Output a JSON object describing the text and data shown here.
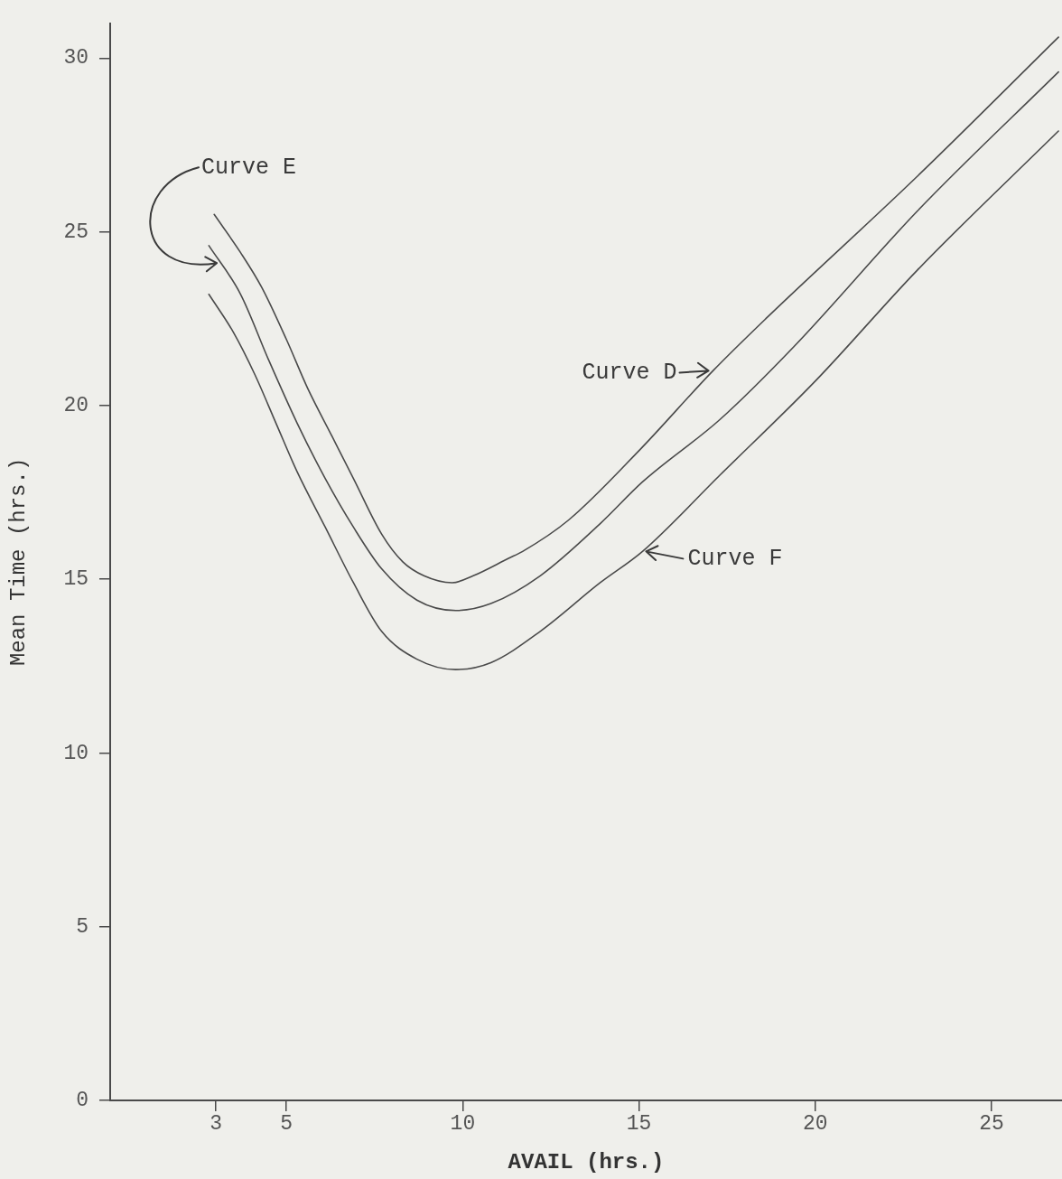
{
  "chart_data": {
    "type": "line",
    "xlabel": "AVAIL (hrs.)",
    "ylabel": "Mean Time (hrs.)",
    "xlim": [
      0,
      27
    ],
    "ylim": [
      0,
      31
    ],
    "xticks": [
      3,
      5,
      10,
      15,
      20,
      25
    ],
    "yticks": [
      0,
      5,
      10,
      15,
      20,
      25,
      30
    ],
    "grid": false,
    "legend": false,
    "marker": "none",
    "line_style": "solid",
    "annotations": [
      {
        "text": "Curve D",
        "x": 17.1,
        "y": 21.0
      },
      {
        "text": "Curve E",
        "x": 3.1,
        "y": 24.1
      },
      {
        "text": "Curve F",
        "x": 15.1,
        "y": 15.8
      }
    ],
    "series": [
      {
        "color": "#4a4a4a",
        "x": [
          2.95,
          3.7,
          4.3,
          5.0,
          5.6,
          6.3,
          6.9,
          7.7,
          8.3,
          8.9,
          9.7,
          10.3,
          11.3,
          11.7,
          13.0,
          15.0,
          17.1,
          18.6,
          22.9,
          26.9
        ],
        "values": [
          25.5,
          24.4,
          23.4,
          21.9,
          20.5,
          19.1,
          17.9,
          16.3,
          15.5,
          15.1,
          14.9,
          15.1,
          15.6,
          15.8,
          16.7,
          18.7,
          21.0,
          22.5,
          26.6,
          30.6
        ]
      },
      {
        "color": "#4a4a4a",
        "x": [
          2.8,
          3.7,
          4.5,
          5.3,
          6.1,
          6.9,
          7.7,
          8.7,
          9.8,
          10.8,
          12.2,
          13.9,
          15.1,
          17.3,
          19.4,
          22.9,
          26.9
        ],
        "values": [
          24.6,
          23.2,
          21.3,
          19.5,
          17.9,
          16.5,
          15.3,
          14.4,
          14.1,
          14.3,
          15.1,
          16.6,
          17.8,
          19.6,
          21.7,
          25.6,
          29.6
        ]
      },
      {
        "color": "#4a4a4a",
        "x": [
          2.8,
          3.5,
          4.1,
          4.7,
          5.3,
          6.1,
          6.9,
          7.7,
          8.7,
          9.8,
          10.8,
          12.2,
          13.9,
          15.1,
          17.3,
          20.0,
          22.9,
          26.9
        ],
        "values": [
          23.2,
          22.1,
          20.9,
          19.5,
          18.1,
          16.5,
          14.9,
          13.5,
          12.7,
          12.4,
          12.6,
          13.5,
          14.9,
          15.8,
          18.0,
          20.7,
          23.9,
          27.9
        ]
      }
    ]
  }
}
